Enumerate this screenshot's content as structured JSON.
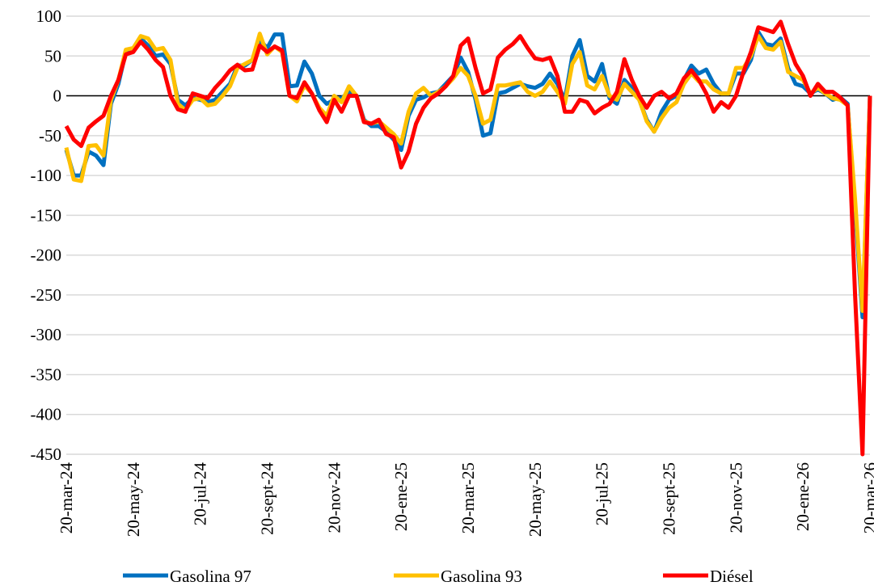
{
  "chart_data": {
    "type": "line",
    "categories": [
      "20-mar-24",
      null,
      null,
      null,
      null,
      null,
      null,
      null,
      null,
      "20-may-24",
      null,
      null,
      null,
      null,
      null,
      null,
      null,
      null,
      "20-jul-24",
      null,
      null,
      null,
      null,
      null,
      null,
      null,
      null,
      "20-sept-24",
      null,
      null,
      null,
      null,
      null,
      null,
      null,
      null,
      "20-nov-24",
      null,
      null,
      null,
      null,
      null,
      null,
      null,
      null,
      "20-ene-25",
      null,
      null,
      null,
      null,
      null,
      null,
      null,
      null,
      "20-mar-25",
      null,
      null,
      null,
      null,
      null,
      null,
      null,
      null,
      "20-may-25",
      null,
      null,
      null,
      null,
      null,
      null,
      null,
      null,
      "20-jul-25",
      null,
      null,
      null,
      null,
      null,
      null,
      null,
      null,
      "20-sept-25",
      null,
      null,
      null,
      null,
      null,
      null,
      null,
      null,
      "20-nov-25",
      null,
      null,
      null,
      null,
      null,
      null,
      null,
      null,
      "20-ene-26",
      null,
      null,
      null,
      null,
      null,
      null,
      null,
      null,
      "20-mar-26"
    ],
    "series": [
      {
        "name": "Gasolina 97",
        "color": "#0070c0",
        "values": [
          -68,
          -100,
          -100,
          -70,
          -75,
          -87,
          -10,
          15,
          55,
          58,
          72,
          63,
          50,
          52,
          40,
          -5,
          -12,
          -3,
          -5,
          -8,
          -5,
          5,
          15,
          38,
          38,
          45,
          70,
          60,
          77,
          77,
          12,
          13,
          43,
          28,
          0,
          -10,
          -5,
          -3,
          5,
          0,
          -30,
          -38,
          -38,
          -45,
          -55,
          -68,
          -25,
          -5,
          -2,
          3,
          5,
          15,
          25,
          48,
          30,
          -5,
          -50,
          -47,
          3,
          5,
          10,
          15,
          12,
          10,
          15,
          28,
          15,
          -5,
          50,
          70,
          25,
          18,
          40,
          -3,
          -10,
          20,
          10,
          -5,
          -30,
          -45,
          -20,
          -5,
          0,
          20,
          38,
          28,
          33,
          15,
          3,
          3,
          28,
          28,
          45,
          80,
          65,
          63,
          72,
          35,
          15,
          12,
          3,
          8,
          3,
          -5,
          -2,
          -10,
          -140,
          -278,
          0
        ]
      },
      {
        "name": "Gasolina 93",
        "color": "#ffc000",
        "values": [
          -65,
          -105,
          -107,
          -63,
          -62,
          -75,
          -5,
          20,
          58,
          60,
          75,
          72,
          58,
          60,
          45,
          -10,
          -18,
          -5,
          -3,
          -12,
          -10,
          0,
          12,
          35,
          40,
          45,
          78,
          52,
          62,
          55,
          0,
          -7,
          13,
          3,
          -15,
          -25,
          0,
          -8,
          12,
          0,
          -32,
          -35,
          -32,
          -40,
          -48,
          -60,
          -20,
          3,
          10,
          0,
          5,
          12,
          22,
          35,
          25,
          0,
          -35,
          -30,
          13,
          13,
          15,
          17,
          5,
          0,
          5,
          18,
          5,
          -10,
          40,
          55,
          13,
          8,
          25,
          0,
          -5,
          15,
          5,
          -5,
          -32,
          -45,
          -28,
          -15,
          -8,
          15,
          28,
          18,
          18,
          8,
          3,
          3,
          35,
          35,
          50,
          75,
          60,
          58,
          68,
          30,
          25,
          20,
          3,
          10,
          3,
          -3,
          -5,
          -12,
          -130,
          -270,
          0
        ]
      },
      {
        "name": "Diésel",
        "color": "#ff0000",
        "values": [
          -38,
          -55,
          -63,
          -40,
          -32,
          -25,
          0,
          20,
          52,
          55,
          68,
          58,
          45,
          36,
          0,
          -17,
          -20,
          3,
          0,
          -3,
          10,
          20,
          32,
          39,
          32,
          33,
          63,
          55,
          62,
          57,
          0,
          -3,
          17,
          3,
          -18,
          -33,
          -5,
          -20,
          0,
          0,
          -33,
          -35,
          -30,
          -48,
          -52,
          -90,
          -70,
          -35,
          -15,
          -3,
          3,
          12,
          25,
          63,
          72,
          35,
          3,
          8,
          48,
          58,
          65,
          75,
          60,
          47,
          45,
          48,
          25,
          -20,
          -20,
          -5,
          -8,
          -22,
          -15,
          -10,
          5,
          46,
          20,
          0,
          -15,
          0,
          5,
          -3,
          3,
          22,
          32,
          20,
          3,
          -20,
          -8,
          -15,
          0,
          30,
          55,
          86,
          83,
          80,
          93,
          65,
          40,
          25,
          0,
          15,
          5,
          5,
          -2,
          -12,
          -250,
          -450,
          0
        ]
      }
    ],
    "ylim": [
      -450,
      100
    ],
    "yticks": [
      100,
      50,
      0,
      -50,
      -100,
      -150,
      -200,
      -250,
      -300,
      -350,
      -400,
      -450
    ],
    "grid": true
  }
}
